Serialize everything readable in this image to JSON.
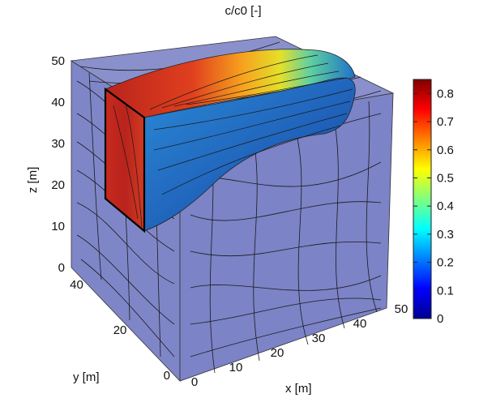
{
  "chart_data": {
    "type": "3d-volume-slice",
    "title": "c/c0 [-]",
    "xlabel": "x [m]",
    "ylabel": "y [m]",
    "zlabel": "z [m]",
    "x_ticks": [
      "0",
      "10",
      "20",
      "30",
      "40",
      "50"
    ],
    "y_ticks": [
      "0",
      "20",
      "40"
    ],
    "z_ticks": [
      "0",
      "10",
      "20",
      "30",
      "40",
      "50"
    ],
    "xlim": [
      0,
      50
    ],
    "ylim": [
      0,
      50
    ],
    "zlim": [
      0,
      50
    ],
    "colorbar": {
      "ticks": [
        "0",
        "0.1",
        "0.2",
        "0.3",
        "0.4",
        "0.5",
        "0.6",
        "0.7",
        "0.8"
      ],
      "range": [
        0,
        0.85
      ],
      "colormap": "jet"
    },
    "colors": {
      "volume_face": "#7f86c8",
      "plume_high": "#b8231c",
      "plume_mid": "#f2d61e",
      "plume_low": "#1f72c8"
    }
  }
}
